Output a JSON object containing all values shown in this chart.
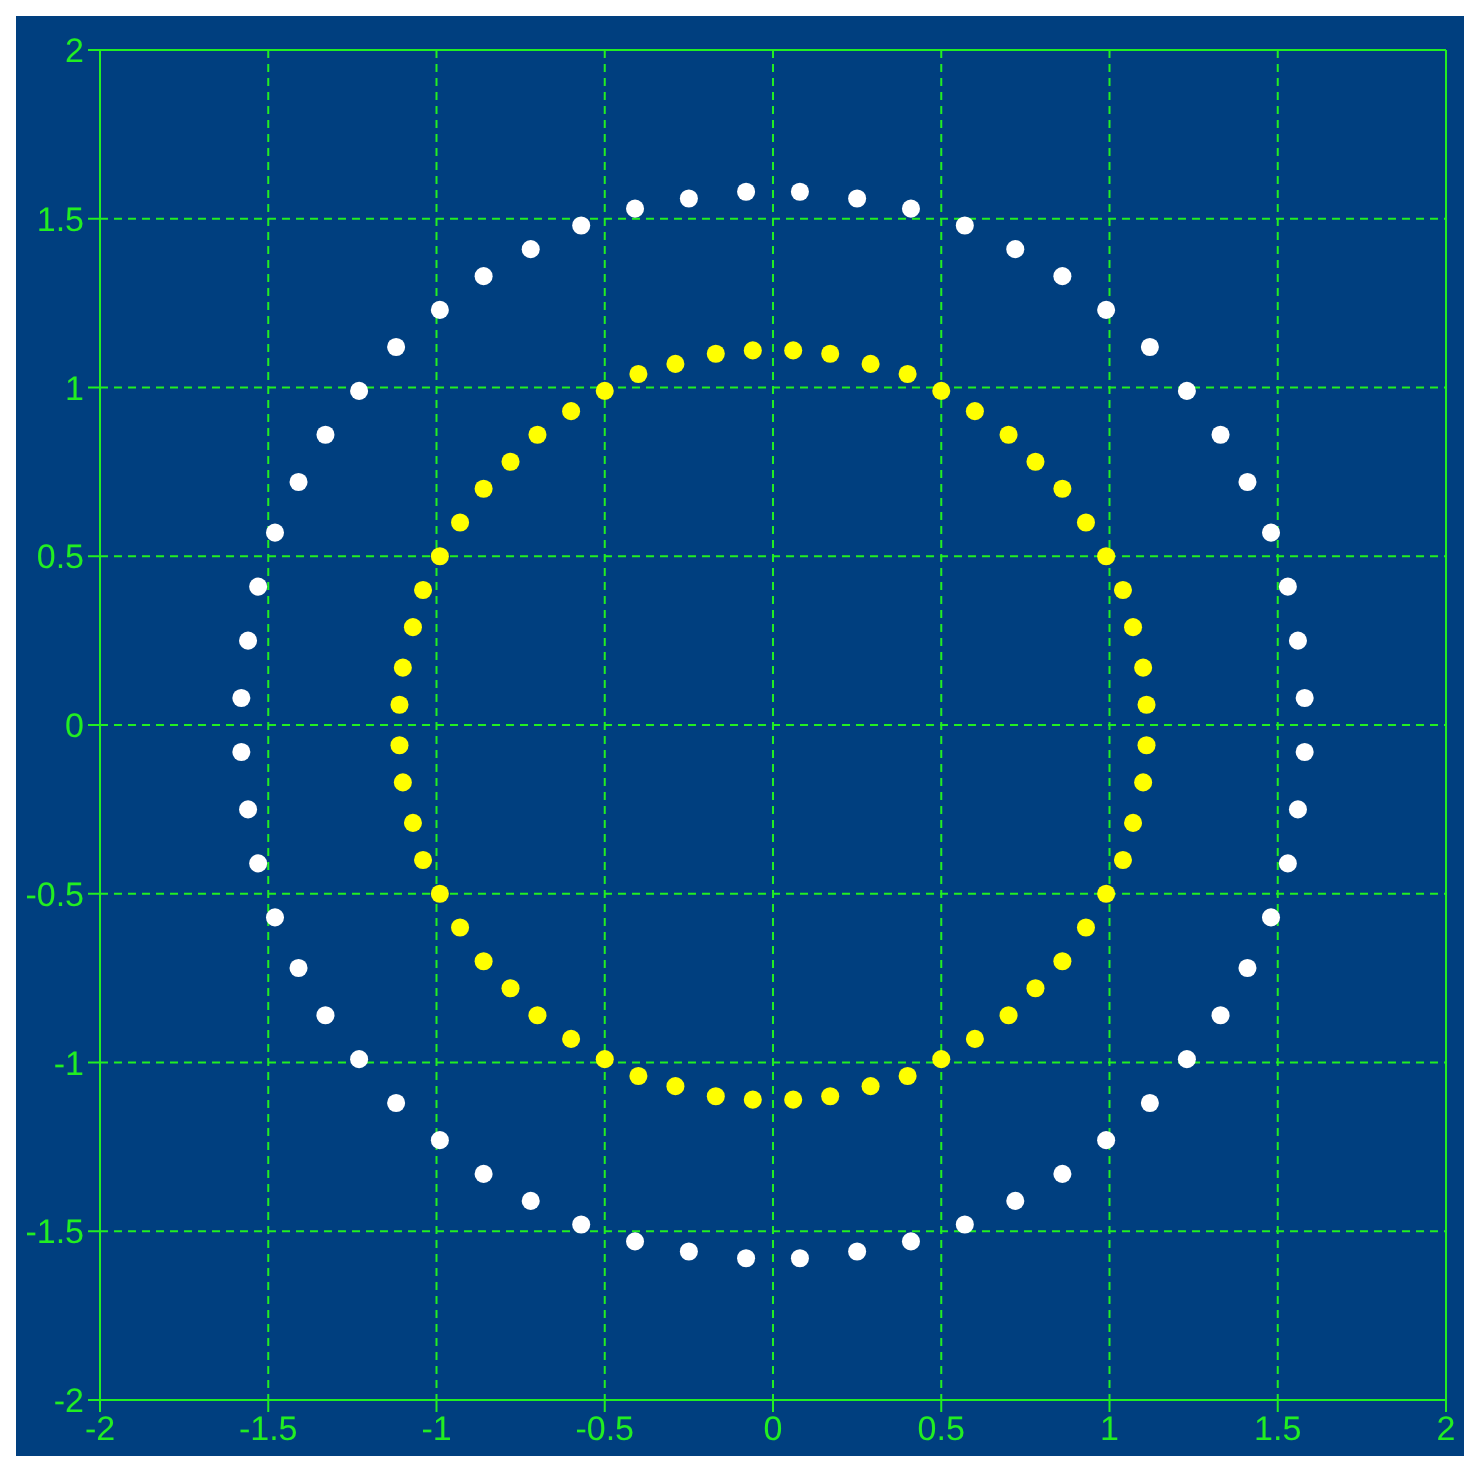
{
  "chart_data": {
    "type": "scatter",
    "xlim": [
      -2,
      2
    ],
    "ylim": [
      -2,
      2
    ],
    "xticks": [
      -2,
      -1.5,
      -1,
      -0.5,
      0,
      0.5,
      1,
      1.5,
      2
    ],
    "yticks": [
      -2,
      -1.5,
      -1,
      -0.5,
      0,
      0.5,
      1,
      1.5,
      2
    ],
    "grid": true,
    "legend": false,
    "marker": "circle",
    "series": [
      {
        "color": "#ffffff",
        "x": [
          1.58,
          1.56,
          1.53,
          1.48,
          1.41,
          1.33,
          1.23,
          1.12,
          0.99,
          0.86,
          0.72,
          0.57,
          0.41,
          0.25,
          0.08,
          -0.08,
          -0.25,
          -0.41,
          -0.57,
          -0.72,
          -0.86,
          -0.99,
          -1.12,
          -1.23,
          -1.33,
          -1.41,
          -1.48,
          -1.53,
          -1.56,
          -1.58,
          -1.58,
          -1.56,
          -1.53,
          -1.48,
          -1.41,
          -1.33,
          -1.23,
          -1.12,
          -0.99,
          -0.86,
          -0.72,
          -0.57,
          -0.41,
          -0.25,
          -0.08,
          0.08,
          0.25,
          0.41,
          0.57,
          0.72,
          0.86,
          0.99,
          1.12,
          1.23,
          1.33,
          1.41,
          1.48,
          1.53,
          1.56,
          1.58
        ],
        "values": [
          0.08,
          0.25,
          0.41,
          0.57,
          0.72,
          0.86,
          0.99,
          1.12,
          1.23,
          1.33,
          1.41,
          1.48,
          1.53,
          1.56,
          1.58,
          1.58,
          1.56,
          1.53,
          1.48,
          1.41,
          1.33,
          1.23,
          1.12,
          0.99,
          0.86,
          0.72,
          0.57,
          0.41,
          0.25,
          0.08,
          -0.08,
          -0.25,
          -0.41,
          -0.57,
          -0.72,
          -0.86,
          -0.99,
          -1.12,
          -1.23,
          -1.33,
          -1.41,
          -1.48,
          -1.53,
          -1.56,
          -1.58,
          -1.58,
          -1.56,
          -1.53,
          -1.48,
          -1.41,
          -1.33,
          -1.23,
          -1.12,
          -0.99,
          -0.86,
          -0.72,
          -0.57,
          -0.41,
          -0.25,
          -0.08
        ]
      },
      {
        "color": "#ffff00",
        "x": [
          1.11,
          1.1,
          1.07,
          1.04,
          0.99,
          0.93,
          0.86,
          0.78,
          0.7,
          0.6,
          0.5,
          0.4,
          0.29,
          0.17,
          0.06,
          -0.06,
          -0.17,
          -0.29,
          -0.4,
          -0.5,
          -0.6,
          -0.7,
          -0.78,
          -0.86,
          -0.93,
          -0.99,
          -1.04,
          -1.07,
          -1.1,
          -1.11,
          -1.11,
          -1.1,
          -1.07,
          -1.04,
          -0.99,
          -0.93,
          -0.86,
          -0.78,
          -0.7,
          -0.6,
          -0.5,
          -0.4,
          -0.29,
          -0.17,
          -0.06,
          0.06,
          0.17,
          0.29,
          0.4,
          0.5,
          0.6,
          0.7,
          0.78,
          0.86,
          0.93,
          0.99,
          1.04,
          1.07,
          1.1,
          1.11
        ],
        "values": [
          0.06,
          0.17,
          0.29,
          0.4,
          0.5,
          0.6,
          0.7,
          0.78,
          0.86,
          0.93,
          0.99,
          1.04,
          1.07,
          1.1,
          1.11,
          1.11,
          1.1,
          1.07,
          1.04,
          0.99,
          0.93,
          0.86,
          0.78,
          0.7,
          0.6,
          0.5,
          0.4,
          0.29,
          0.17,
          0.06,
          -0.06,
          -0.17,
          -0.29,
          -0.4,
          -0.5,
          -0.6,
          -0.7,
          -0.78,
          -0.86,
          -0.93,
          -0.99,
          -1.04,
          -1.07,
          -1.1,
          -1.11,
          -1.11,
          -1.1,
          -1.07,
          -1.04,
          -0.99,
          -0.93,
          -0.86,
          -0.78,
          -0.7,
          -0.6,
          -0.5,
          -0.4,
          -0.29,
          -0.17,
          -0.06
        ]
      }
    ]
  }
}
